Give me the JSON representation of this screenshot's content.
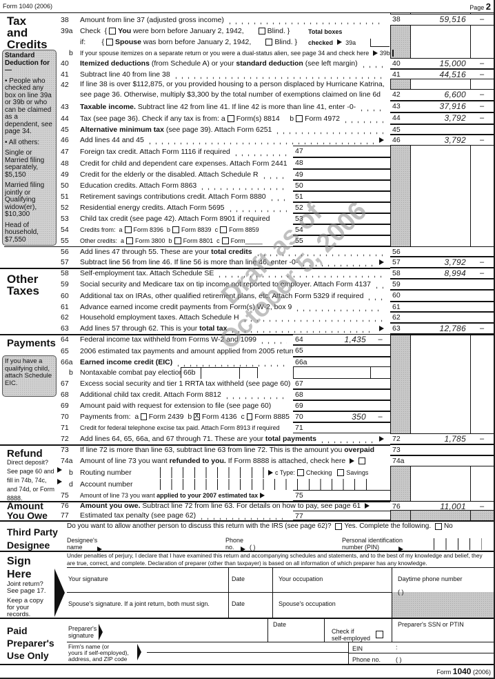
{
  "header": {
    "form_label": "Form 1040 (2006)",
    "page_label": "Page",
    "page_num": "2"
  },
  "sections": {
    "tax_credits": "Tax\nand\nCredits",
    "other_taxes": "Other\nTaxes",
    "payments": "Payments",
    "refund": "Refund",
    "amount_owe": "Amount\nYou Owe",
    "third_party": "Third Party\nDesignee",
    "sign_here": "Sign\nHere",
    "paid_preparer": "Paid\nPreparer's\nUse Only"
  },
  "std_deduction": {
    "title": "Standard Deduction for—",
    "items": [
      "• People who checked any box on line 39a or 39b or who can be claimed as a dependent, see page 34.",
      "• All others:",
      "Single or Married filing separately, $5,150",
      "Married filing jointly or Qualifying widow(er), $10,300",
      "Head of household, $7,550"
    ]
  },
  "eic_note": "If you have a qualifying child, attach Schedule EIC.",
  "refund_note": "Direct deposit? See page 60 and fill in 74b, 74c, and 74d, or Form 8888.",
  "line39a": {
    "total_boxes": "Total boxes",
    "checked": "checked",
    "ref": "39a"
  },
  "lines": [
    {
      "num": "38",
      "segs": [
        "Amount from line 37 (adjusted gross income)"
      ],
      "leader": true,
      "box": "outer",
      "box_num": "38",
      "amount": "59,516",
      "cents": "–"
    },
    {
      "num": "39a",
      "segs": [
        "Check  {",
        {
          "cb": false
        },
        {
          "b": "You"
        },
        " were born before January 2, 1942,",
        {
          "sp": 1
        },
        {
          "cb": false
        },
        "Blind. }"
      ]
    },
    {
      "num": "",
      "segs": [
        "if:        {",
        {
          "cb": false
        },
        {
          "b": "Spouse"
        },
        " was born before January 2, 1942,",
        {
          "sp": 1
        },
        {
          "cb": false
        },
        "Blind. }"
      ]
    },
    {
      "num": "b",
      "small": true,
      "segs": [
        "If your spouse itemizes on a separate return or you were a dual-status alien, see page 34 and check here ",
        {
          "arrow": 1
        },
        "39b",
        {
          "cb": false
        }
      ]
    },
    {
      "num": "40",
      "segs": [
        {
          "b": "Itemized deductions"
        },
        " (from Schedule A) or your ",
        {
          "b": "standard deduction"
        },
        " (see left margin)"
      ],
      "leader": true,
      "box": "outer",
      "box_num": "40",
      "amount": "15,000",
      "cents": "–"
    },
    {
      "num": "41",
      "segs": [
        "Subtract line 40 from line 38"
      ],
      "leader": true,
      "box": "outer",
      "box_num": "41",
      "amount": "44,516",
      "cents": "–"
    },
    {
      "num": "42",
      "two": true,
      "segs": [
        "If line 38 is over $112,875, or you provided housing to a person displaced by Hurricane Katrina,\nsee page 36. Otherwise, multiply $3,300 by the total number of exemptions claimed on line 6d"
      ],
      "box": "outer",
      "box_num": "42",
      "amount": "6,600",
      "cents": "–"
    },
    {
      "num": "43",
      "segs": [
        {
          "b": "Taxable income."
        },
        " Subtract line 42 from line 41. If line 42 is more than line 41, enter -0-"
      ],
      "leader": true,
      "box": "outer",
      "box_num": "43",
      "amount": "37,916",
      "cents": "–"
    },
    {
      "num": "44",
      "segs": [
        "Tax (see page 36). Check if any tax is from: a",
        {
          "cb": false
        },
        "Form(s) 8814     b",
        {
          "cb": false
        },
        "Form 4972"
      ],
      "leader": true,
      "box": "outer",
      "box_num": "44",
      "amount": "3,792",
      "cents": "–"
    },
    {
      "num": "45",
      "segs": [
        {
          "b": "Alternative minimum tax"
        },
        " (see page 39). Attach Form 6251"
      ],
      "leader": true,
      "box": "outer",
      "box_num": "45",
      "amount": "",
      "cents": ""
    },
    {
      "num": "46",
      "segs": [
        "Add lines 44 and 45"
      ],
      "leader": true,
      "arrow": true,
      "box": "outer",
      "box_num": "46",
      "amount": "3,792",
      "cents": "–"
    },
    {
      "num": "47",
      "segs": [
        "Foreign tax credit. Attach Form 1116 if required"
      ],
      "leader": true,
      "box": "inner",
      "box_num": "47",
      "amount": "",
      "cents": ""
    },
    {
      "num": "48",
      "segs": [
        "Credit for child and dependent care expenses. Attach Form 2441"
      ],
      "box": "inner",
      "box_num": "48",
      "amount": "",
      "cents": ""
    },
    {
      "num": "49",
      "segs": [
        "Credit for the elderly or the disabled. Attach Schedule R"
      ],
      "leader": true,
      "box": "inner",
      "box_num": "49",
      "amount": "",
      "cents": ""
    },
    {
      "num": "50",
      "segs": [
        "Education credits. Attach Form 8863"
      ],
      "leader": true,
      "box": "inner",
      "box_num": "50",
      "amount": "",
      "cents": ""
    },
    {
      "num": "51",
      "segs": [
        "Retirement savings contributions credit. Attach Form 8880"
      ],
      "leader": true,
      "box": "inner",
      "box_num": "51",
      "amount": "",
      "cents": ""
    },
    {
      "num": "52",
      "segs": [
        "Residential energy credits. Attach Form 5695"
      ],
      "leader": true,
      "box": "inner",
      "box_num": "52",
      "amount": "",
      "cents": ""
    },
    {
      "num": "53",
      "segs": [
        "Child tax credit (see page 42). Attach Form 8901 if required"
      ],
      "box": "inner",
      "box_num": "53",
      "amount": "",
      "cents": ""
    },
    {
      "num": "54",
      "small": true,
      "segs": [
        "Credits from:  a",
        {
          "cb": false
        },
        "Form 8396  b",
        {
          "cb": false
        },
        "Form 8839  c",
        {
          "cb": false
        },
        "Form 8859"
      ],
      "box": "inner",
      "box_num": "54",
      "amount": "",
      "cents": ""
    },
    {
      "num": "55",
      "small": true,
      "segs": [
        "Other credits:  a",
        {
          "cb": false
        },
        "Form 3800  b",
        {
          "cb": false
        },
        "Form 8801  c",
        {
          "cb": false
        },
        "Form_____"
      ],
      "box": "inner",
      "box_num": "55",
      "amount": "",
      "cents": ""
    },
    {
      "num": "56",
      "segs": [
        "Add lines 47 through 55. These are your ",
        {
          "b": "total credits"
        }
      ],
      "leader": true,
      "box": "outer",
      "box_num": "56",
      "amount": "",
      "cents": ""
    },
    {
      "num": "57",
      "segs": [
        "Subtract line 56 from line 46. If line 56 is more than line 46, enter -0-"
      ],
      "leader": true,
      "arrow": true,
      "box": "outer",
      "box_num": "57",
      "amount": "3,792",
      "cents": "–"
    },
    {
      "num": "58",
      "segs": [
        "Self-employment tax. Attach Schedule SE"
      ],
      "leader": true,
      "box": "outer",
      "box_num": "58",
      "amount": "8,994",
      "cents": "–"
    },
    {
      "num": "59",
      "segs": [
        "Social security and Medicare tax on tip income not reported to employer. Attach Form 4137"
      ],
      "leader": true,
      "box": "outer",
      "box_num": "59",
      "amount": "",
      "cents": ""
    },
    {
      "num": "60",
      "segs": [
        "Additional tax on IRAs, other qualified retirement plans, etc. Attach Form 5329 if required"
      ],
      "leader": true,
      "box": "outer",
      "box_num": "60",
      "amount": "",
      "cents": ""
    },
    {
      "num": "61",
      "segs": [
        "Advance earned income credit payments from Form(s) W-2, box 9"
      ],
      "leader": true,
      "box": "outer",
      "box_num": "61",
      "amount": "",
      "cents": ""
    },
    {
      "num": "62",
      "segs": [
        "Household employment taxes. Attach Schedule H"
      ],
      "leader": true,
      "box": "outer",
      "box_num": "62",
      "amount": "",
      "cents": ""
    },
    {
      "num": "63",
      "segs": [
        "Add lines 57 through 62. This is your ",
        {
          "b": "total tax"
        }
      ],
      "leader": true,
      "arrow": true,
      "box": "outer",
      "box_num": "63",
      "amount": "12,786",
      "cents": "–"
    },
    {
      "num": "64",
      "segs": [
        "Federal income tax withheld from Forms W-2 and 1099"
      ],
      "leader": true,
      "box": "inner",
      "box_num": "64",
      "amount": "1,435",
      "cents": "–"
    },
    {
      "num": "65",
      "segs": [
        "2006 estimated tax payments and amount applied from 2005 return"
      ],
      "box": "inner",
      "box_num": "65",
      "amount": "",
      "cents": ""
    },
    {
      "num": "66a",
      "segs": [
        {
          "b": "Earned income credit (EIC)"
        }
      ],
      "leader": true,
      "box": "inner",
      "box_num": "66a",
      "amount": "",
      "cents": ""
    },
    {
      "num": "b",
      "segs": [
        "Nontaxable combat pay election",
        {
          "arrow": 1
        }
      ],
      "box": "combat",
      "box_num": "66b"
    },
    {
      "num": "67",
      "segs": [
        "Excess social security and tier 1 RRTA tax withheld (see page 60)"
      ],
      "box": "inner",
      "box_num": "67",
      "amount": "",
      "cents": ""
    },
    {
      "num": "68",
      "segs": [
        "Additional child tax credit. Attach Form 8812"
      ],
      "leader": true,
      "box": "inner",
      "box_num": "68",
      "amount": "",
      "cents": ""
    },
    {
      "num": "69",
      "segs": [
        "Amount paid with request for extension to file (see page 60)"
      ],
      "box": "inner",
      "box_num": "69",
      "amount": "",
      "cents": ""
    },
    {
      "num": "70",
      "segs": [
        "Payments from:  a",
        {
          "cb": false
        },
        "Form 2439  b",
        {
          "cb": true
        },
        "Form 4136  c",
        {
          "cb": false
        },
        "Form 8885"
      ],
      "box": "inner",
      "box_num": "70",
      "amount": "350",
      "cents": "–"
    },
    {
      "num": "71",
      "small": true,
      "segs": [
        "Credit for federal telephone excise tax paid. Attach Form 8913 if required"
      ],
      "box": "inner",
      "box_num": "71",
      "amount": "",
      "cents": ""
    },
    {
      "num": "72",
      "segs": [
        "Add lines 64, 65, 66a, and 67 through 71. These are your ",
        {
          "b": "total payments"
        }
      ],
      "leader": true,
      "arrow": true,
      "box": "outer",
      "box_num": "72",
      "amount": "1,785",
      "cents": "–"
    },
    {
      "num": "73",
      "segs": [
        "If line 72 is more than line 63, subtract line 63 from line 72. This is the amount you ",
        {
          "b": "overpaid"
        }
      ],
      "box": "outer",
      "box_num": "73",
      "amount": "",
      "cents": ""
    },
    {
      "num": "74a",
      "segs": [
        "Amount of line 73 you want ",
        {
          "b": "refunded to you."
        },
        " If Form 8888 is attached, check here ",
        {
          "arrow": 1
        },
        {
          "cb": false
        }
      ],
      "box": "outer",
      "box_num": "74a",
      "amount": "",
      "cents": ""
    },
    {
      "num": "b",
      "segs": [
        "Routing number"
      ]
    },
    {
      "num": "d",
      "segs": [
        "Account number"
      ]
    },
    {
      "num": "75",
      "small": true,
      "segs": [
        "Amount of line 73 you want ",
        {
          "b": "applied to your 2007 estimated tax"
        },
        {
          "arrow": 1
        }
      ],
      "box": "inner",
      "box_num": "75",
      "amount": "",
      "cents": ""
    },
    {
      "num": "76",
      "segs": [
        {
          "b": "Amount you owe."
        },
        " Subtract line 72 from line 63. For details on how to pay, see page 61 ",
        {
          "arrow": 1
        }
      ],
      "box": "outer",
      "box_num": "76",
      "amount": "11,001",
      "cents": "–"
    },
    {
      "num": "77",
      "segs": [
        "Estimated tax penalty (see page 62)"
      ],
      "leader": true,
      "box": "inner",
      "box_num": "77",
      "amount": "",
      "cents": ""
    }
  ],
  "line74c": {
    "label": "c Type:",
    "checking": "Checking",
    "savings": "Savings"
  },
  "third_party": {
    "question": "Do you want to allow another person to discuss this return with the IRS (see page 62)?",
    "yes": "Yes. Complete the following.",
    "no": "No",
    "designee_name": "Designee's\nname",
    "phone": "Phone\nno.",
    "phone_parens": "(        )",
    "pin": "Personal identification\nnumber (PIN)"
  },
  "sign": {
    "declaration": "Under penalties of perjury, I declare that I have examined this return and accompanying schedules and statements, and to the best of my knowledge and belief, they are true, correct, and complete. Declaration of preparer (other than taxpayer) is based on all information of which preparer has any knowledge.",
    "joint": "Joint return?\nSee page 17.",
    "keep": "Keep a copy\nfor your\nrecords.",
    "your_sig": "Your signature",
    "date": "Date",
    "your_occ": "Your occupation",
    "daytime_phone": "Daytime phone number",
    "phone_parens": "(        )",
    "spouse_sig": "Spouse's signature. If a joint return, both must sign.",
    "spouse_occ": "Spouse's occupation"
  },
  "preparer": {
    "sig": "Preparer's\nsignature",
    "date": "Date",
    "self_employed": "Check if\nself-employed",
    "ssn": "Preparer's SSN or PTIN",
    "firm": "Firm's name (or\nyours if self-employed),\naddress, and ZIP code",
    "ein": "EIN",
    "ein_sep": ":",
    "phone": "Phone no.",
    "phone_parens": "(        )"
  },
  "footer": {
    "form": "Form",
    "num": "1040",
    "year": "(2006)"
  },
  "watermark": {
    "line1": "Draft as of",
    "line2": "October 5, 2006"
  }
}
